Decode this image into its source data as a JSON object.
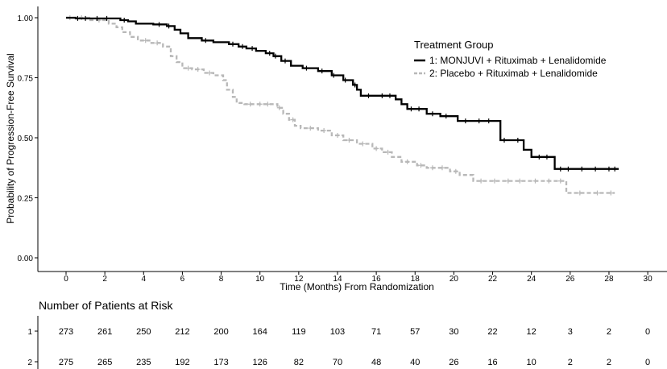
{
  "chart_data": {
    "type": "line",
    "subtype": "kaplan-meier step",
    "ylabel": "Probability of Progression-Free Survival",
    "xlabel": "Time (Months) From Randomization",
    "x_ticks": [
      0,
      2,
      4,
      6,
      8,
      10,
      12,
      14,
      16,
      18,
      20,
      22,
      24,
      26,
      28,
      30
    ],
    "y_ticks": [
      "0.00",
      "0.25",
      "0.50",
      "0.75",
      "1.00"
    ],
    "xlim": [
      0,
      30
    ],
    "ylim": [
      0,
      1
    ],
    "legend": {
      "title": "Treatment Group",
      "position": "top-right",
      "entries": [
        "1: MONJUVI + Rituximab + Lenalidomide",
        "2: Placebo + Rituximab + Lenalidomide"
      ]
    },
    "series": [
      {
        "name": "1: MONJUVI + Rituximab + Lenalidomide",
        "color": "#000000",
        "steps": [
          [
            0,
            1.0
          ],
          [
            0.5,
            0.997
          ],
          [
            2.8,
            0.99
          ],
          [
            3.2,
            0.985
          ],
          [
            3.6,
            0.975
          ],
          [
            4.5,
            0.972
          ],
          [
            5.2,
            0.965
          ],
          [
            5.6,
            0.95
          ],
          [
            5.9,
            0.935
          ],
          [
            6.3,
            0.915
          ],
          [
            7.0,
            0.905
          ],
          [
            7.6,
            0.898
          ],
          [
            8.4,
            0.89
          ],
          [
            8.9,
            0.88
          ],
          [
            9.3,
            0.872
          ],
          [
            9.8,
            0.862
          ],
          [
            10.3,
            0.852
          ],
          [
            10.7,
            0.84
          ],
          [
            11.1,
            0.82
          ],
          [
            11.6,
            0.8
          ],
          [
            12.2,
            0.79
          ],
          [
            13.0,
            0.778
          ],
          [
            13.7,
            0.76
          ],
          [
            14.3,
            0.74
          ],
          [
            14.8,
            0.72
          ],
          [
            15.0,
            0.7
          ],
          [
            15.2,
            0.675
          ],
          [
            17.0,
            0.66
          ],
          [
            17.3,
            0.64
          ],
          [
            17.6,
            0.62
          ],
          [
            18.6,
            0.6
          ],
          [
            19.3,
            0.59
          ],
          [
            20.2,
            0.57
          ],
          [
            22.4,
            0.49
          ],
          [
            23.0,
            0.49
          ],
          [
            23.6,
            0.45
          ],
          [
            24.0,
            0.42
          ],
          [
            25.2,
            0.37
          ],
          [
            28.5,
            0.37
          ]
        ],
        "censor_times": [
          0.6,
          1.0,
          1.6,
          2.1,
          3.0,
          4.8,
          5.3,
          7.2,
          8.6,
          9.1,
          9.6,
          10.5,
          10.8,
          11.3,
          12.4,
          13.2,
          13.8,
          14.4,
          14.9,
          15.6,
          16.3,
          16.7,
          17.8,
          18.2,
          18.9,
          19.6,
          20.6,
          21.3,
          21.8,
          22.6,
          23.3,
          24.4,
          24.8,
          25.5,
          25.9,
          26.6,
          27.3,
          28.0,
          28.3
        ]
      },
      {
        "name": "2: Placebo + Rituximab + Lenalidomide",
        "color": "#b8b8b8",
        "steps": [
          [
            0,
            1.0
          ],
          [
            1.2,
            0.99
          ],
          [
            2.2,
            0.975
          ],
          [
            2.6,
            0.96
          ],
          [
            2.9,
            0.94
          ],
          [
            3.3,
            0.92
          ],
          [
            3.7,
            0.905
          ],
          [
            4.4,
            0.895
          ],
          [
            5.0,
            0.88
          ],
          [
            5.4,
            0.84
          ],
          [
            5.7,
            0.815
          ],
          [
            6.0,
            0.79
          ],
          [
            6.5,
            0.785
          ],
          [
            7.1,
            0.77
          ],
          [
            7.6,
            0.76
          ],
          [
            8.1,
            0.74
          ],
          [
            8.3,
            0.7
          ],
          [
            8.6,
            0.67
          ],
          [
            8.8,
            0.645
          ],
          [
            9.2,
            0.64
          ],
          [
            10.9,
            0.625
          ],
          [
            11.2,
            0.6
          ],
          [
            11.5,
            0.575
          ],
          [
            11.8,
            0.55
          ],
          [
            12.1,
            0.54
          ],
          [
            13.0,
            0.53
          ],
          [
            13.7,
            0.51
          ],
          [
            14.3,
            0.49
          ],
          [
            15.0,
            0.475
          ],
          [
            15.8,
            0.455
          ],
          [
            16.3,
            0.44
          ],
          [
            16.8,
            0.42
          ],
          [
            17.3,
            0.4
          ],
          [
            18.1,
            0.385
          ],
          [
            18.6,
            0.375
          ],
          [
            19.8,
            0.36
          ],
          [
            20.3,
            0.345
          ],
          [
            21.0,
            0.32
          ],
          [
            25.8,
            0.27
          ],
          [
            28.3,
            0.27
          ]
        ],
        "censor_times": [
          0.2,
          0.8,
          1.7,
          4.1,
          4.7,
          6.3,
          6.8,
          7.4,
          9.5,
          10.0,
          10.4,
          11.0,
          11.7,
          12.6,
          13.3,
          14.0,
          14.6,
          15.3,
          16.0,
          16.6,
          17.6,
          18.3,
          18.9,
          19.4,
          20.1,
          21.4,
          22.1,
          22.8,
          23.4,
          24.2,
          24.9,
          25.5,
          26.5,
          27.4,
          28.1
        ]
      }
    ]
  },
  "risk_table": {
    "title": "Number of Patients at Risk",
    "time_points": [
      0,
      2,
      4,
      6,
      8,
      10,
      12,
      14,
      16,
      18,
      20,
      22,
      24,
      26,
      28,
      30
    ],
    "rows": [
      {
        "label": "1",
        "counts": [
          "273",
          "261",
          "250",
          "212",
          "200",
          "164",
          "119",
          "103",
          "71",
          "57",
          "30",
          "22",
          "12",
          "3",
          "2",
          "0"
        ]
      },
      {
        "label": "2",
        "counts": [
          "275",
          "265",
          "235",
          "192",
          "173",
          "126",
          "82",
          "70",
          "48",
          "40",
          "26",
          "16",
          "10",
          "2",
          "2",
          "0"
        ]
      }
    ]
  }
}
